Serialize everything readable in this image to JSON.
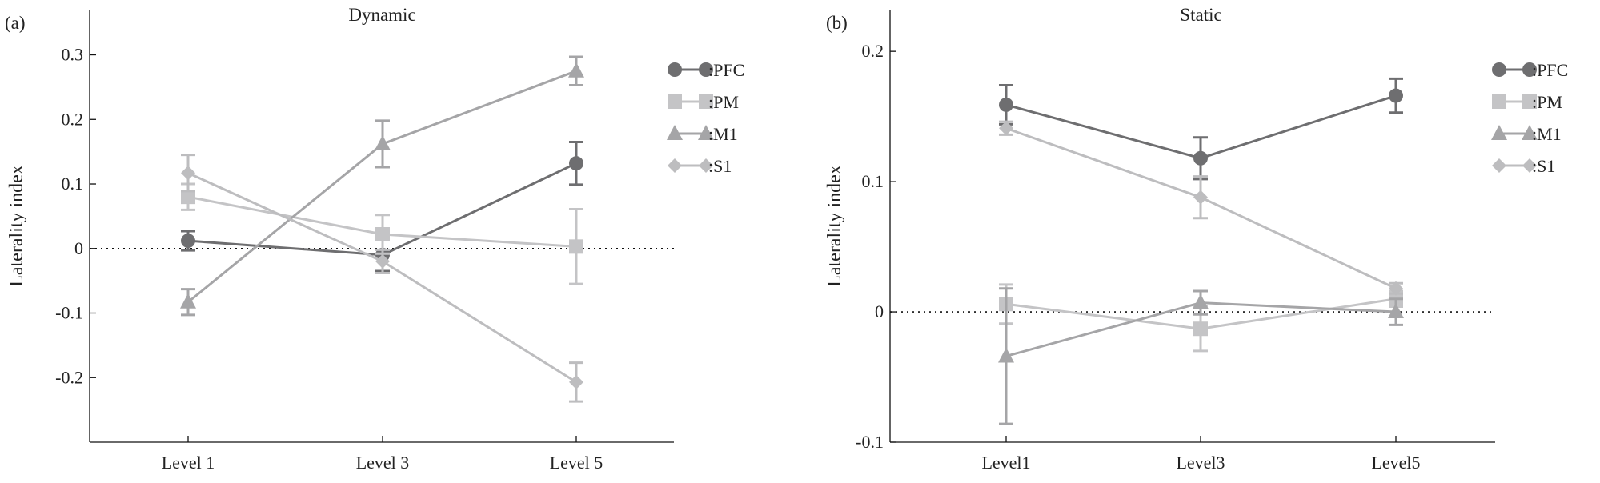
{
  "chart_data": [
    {
      "type": "line",
      "panel_label": "(a)",
      "title": "Dynamic",
      "xlabel": "",
      "ylabel": "Laterality index",
      "categories": [
        "Level 1",
        "Level 3",
        "Level 5"
      ],
      "ylim": [
        -0.3,
        0.37
      ],
      "yticks": [
        -0.2,
        -0.1,
        0,
        0.1,
        0.2,
        0.3
      ],
      "ytick_labels": [
        "-0.2",
        "-0.1",
        "0",
        "0.1",
        "0.2",
        "0.3"
      ],
      "reference_line": 0,
      "legend": "top-right",
      "series": [
        {
          "name": ":PFC",
          "marker": "circle",
          "color": "#6e6e70",
          "values": [
            0.012,
            -0.01,
            0.132
          ],
          "errors": [
            0.015,
            0.025,
            0.033
          ]
        },
        {
          "name": ":PM",
          "marker": "square",
          "color": "#c4c4c6",
          "values": [
            0.08,
            0.022,
            0.003
          ],
          "errors": [
            0.02,
            0.03,
            0.058
          ]
        },
        {
          "name": ":M1",
          "marker": "triangle",
          "color": "#a5a5a7",
          "values": [
            -0.083,
            0.162,
            0.275
          ],
          "errors": [
            0.02,
            0.036,
            0.022
          ]
        },
        {
          "name": ":S1",
          "marker": "diamond",
          "color": "#bdbdbf",
          "values": [
            0.117,
            -0.02,
            -0.207
          ],
          "errors": [
            0.028,
            0.018,
            0.03
          ]
        }
      ]
    },
    {
      "type": "line",
      "panel_label": "(b)",
      "title": "Static",
      "xlabel": "",
      "ylabel": "Laterality index",
      "categories": [
        "Level1",
        "Level3",
        "Level5"
      ],
      "ylim": [
        -0.1,
        0.232
      ],
      "yticks": [
        -0.1,
        0,
        0.1,
        0.2
      ],
      "ytick_labels": [
        "-0.1",
        "0",
        "0.1",
        "0.2"
      ],
      "reference_line": 0,
      "legend": "top-right",
      "series": [
        {
          "name": ":PFC",
          "marker": "circle",
          "color": "#6e6e70",
          "values": [
            0.159,
            0.118,
            0.166
          ],
          "errors": [
            0.015,
            0.016,
            0.013
          ]
        },
        {
          "name": ":PM",
          "marker": "square",
          "color": "#c4c4c6",
          "values": [
            0.006,
            -0.013,
            0.01
          ],
          "errors": [
            0.015,
            0.017,
            0.006
          ]
        },
        {
          "name": ":M1",
          "marker": "triangle",
          "color": "#a5a5a7",
          "values": [
            -0.034,
            0.007,
            0.0
          ],
          "errors": [
            0.052,
            0.009,
            0.01
          ]
        },
        {
          "name": ":S1",
          "marker": "diamond",
          "color": "#bdbdbf",
          "values": [
            0.141,
            0.088,
            0.018
          ],
          "errors": [
            0.005,
            0.016,
            0.004
          ]
        }
      ]
    }
  ]
}
